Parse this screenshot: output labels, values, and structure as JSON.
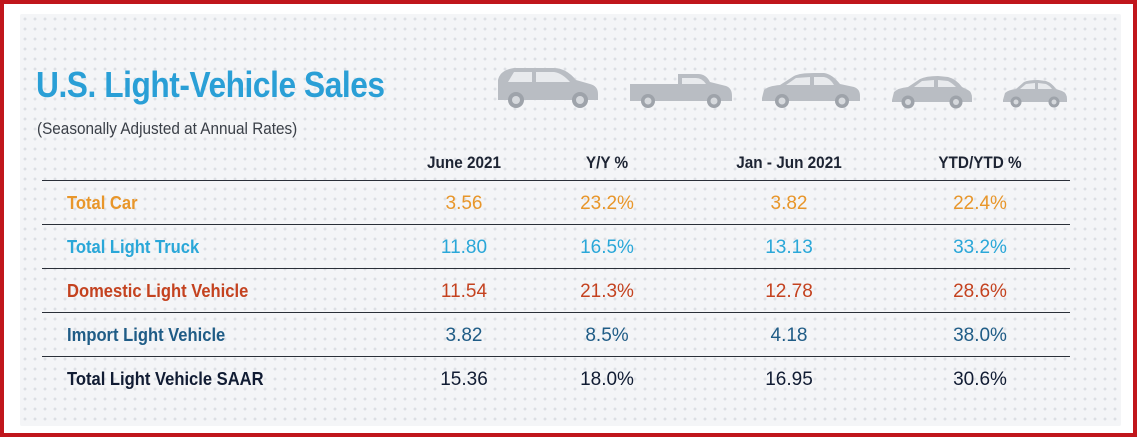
{
  "title": "U.S. Light-Vehicle Sales",
  "subtitle": "(Seasonally Adjusted at Annual Rates)",
  "icons": [
    "minivan-icon",
    "pickup-truck-icon",
    "sedan-icon",
    "hatchback-icon",
    "compact-car-icon"
  ],
  "columns": [
    "June 2021",
    "Y/Y %",
    "Jan - Jun 2021",
    "YTD/YTD %"
  ],
  "rows": [
    {
      "label": "Total Car",
      "values": [
        "3.56",
        "23.2%",
        "3.82",
        "22.4%"
      ],
      "color": "#e8962a"
    },
    {
      "label": "Total Light Truck",
      "values": [
        "11.80",
        "16.5%",
        "13.13",
        "33.2%"
      ],
      "color": "#2aa7d8"
    },
    {
      "label": "Domestic Light Vehicle",
      "values": [
        "11.54",
        "21.3%",
        "12.78",
        "28.6%"
      ],
      "color": "#c4421f"
    },
    {
      "label": "Import Light Vehicle",
      "values": [
        "3.82",
        "8.5%",
        "4.18",
        "38.0%"
      ],
      "color": "#1f5c86"
    },
    {
      "label": "Total Light Vehicle SAAR",
      "values": [
        "15.36",
        "18.0%",
        "16.95",
        "30.6%"
      ],
      "color": "#111c33"
    }
  ],
  "colors": {
    "title": "#2a9fd6",
    "frame": "#c0161c",
    "car_icons": "#b9bdc3"
  }
}
